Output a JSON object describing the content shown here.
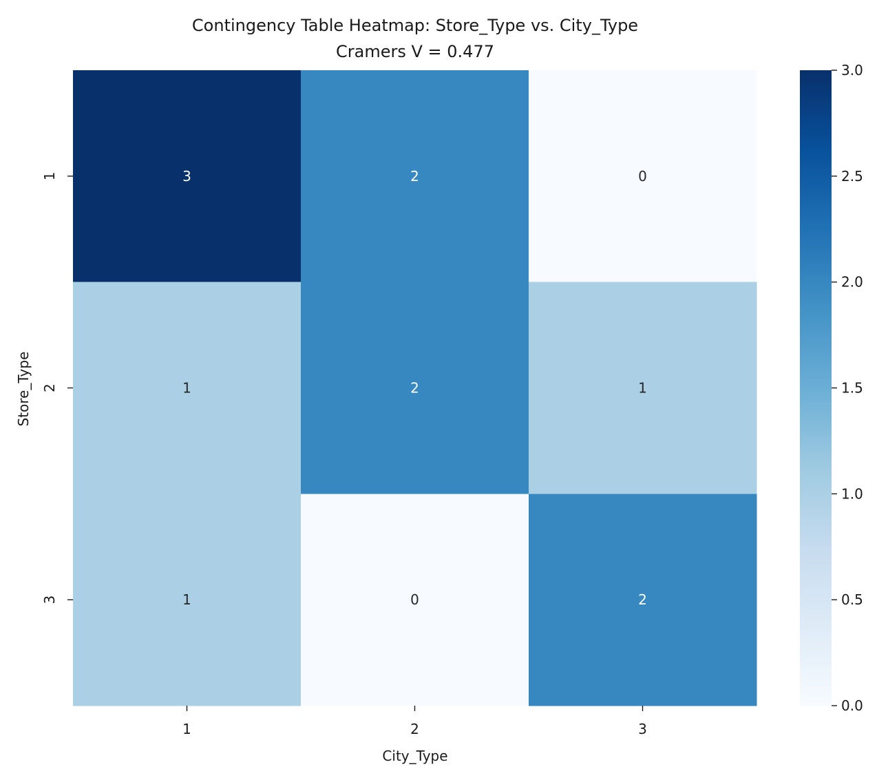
{
  "chart_data": {
    "type": "heatmap",
    "title": "Contingency Table Heatmap: Store_Type vs. City_Type",
    "subtitle": "Cramers V = 0.477",
    "xlabel": "City_Type",
    "ylabel": "Store_Type",
    "x_categories": [
      "1",
      "2",
      "3"
    ],
    "y_categories": [
      "1",
      "2",
      "3"
    ],
    "values": [
      [
        3,
        2,
        0
      ],
      [
        1,
        2,
        1
      ],
      [
        1,
        0,
        2
      ]
    ],
    "colormap": "Blues",
    "color_range": [
      0.0,
      3.0
    ],
    "colorbar_ticks": [
      "0.0",
      "0.5",
      "1.0",
      "1.5",
      "2.0",
      "2.5",
      "3.0"
    ],
    "annotated": true,
    "grid": false,
    "colors": {
      "low": "#f7fbff",
      "high": "#08306b",
      "annotation_dark": "#262626",
      "annotation_light": "#ffffff"
    }
  }
}
